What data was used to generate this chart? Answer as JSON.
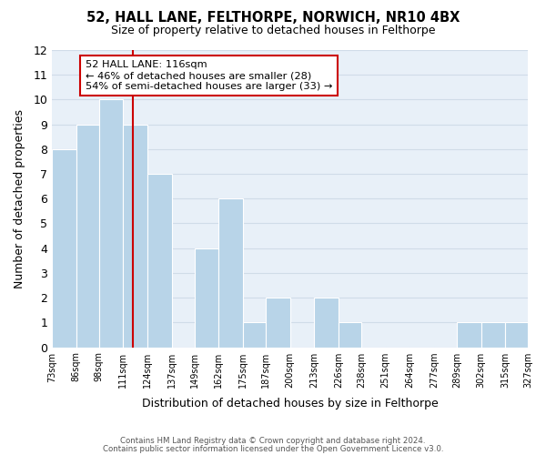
{
  "title_line1": "52, HALL LANE, FELTHORPE, NORWICH, NR10 4BX",
  "title_line2": "Size of property relative to detached houses in Felthorpe",
  "xlabel": "Distribution of detached houses by size in Felthorpe",
  "ylabel": "Number of detached properties",
  "bar_edges": [
    73,
    86,
    98,
    111,
    124,
    137,
    149,
    162,
    175,
    187,
    200,
    213,
    226,
    238,
    251,
    264,
    277,
    289,
    302,
    315,
    327
  ],
  "bar_heights": [
    8,
    9,
    10,
    9,
    7,
    0,
    4,
    6,
    1,
    2,
    0,
    2,
    1,
    0,
    0,
    0,
    0,
    1,
    1,
    1
  ],
  "bar_color": "#b8d4e8",
  "bar_edge_color": "#ffffff",
  "ref_line_x": 116,
  "ref_line_color": "#cc0000",
  "ylim": [
    0,
    12
  ],
  "yticks": [
    0,
    1,
    2,
    3,
    4,
    5,
    6,
    7,
    8,
    9,
    10,
    11,
    12
  ],
  "annotation_title": "52 HALL LANE: 116sqm",
  "annotation_line1": "← 46% of detached houses are smaller (28)",
  "annotation_line2": "54% of semi-detached houses are larger (33) →",
  "annotation_box_color": "#ffffff",
  "annotation_box_edge": "#cc0000",
  "grid_color": "#d0dce8",
  "background_color": "#e8f0f8",
  "footer_line1": "Contains HM Land Registry data © Crown copyright and database right 2024.",
  "footer_line2": "Contains public sector information licensed under the Open Government Licence v3.0.",
  "tick_labels": [
    "73sqm",
    "86sqm",
    "98sqm",
    "111sqm",
    "124sqm",
    "137sqm",
    "149sqm",
    "162sqm",
    "175sqm",
    "187sqm",
    "200sqm",
    "213sqm",
    "226sqm",
    "238sqm",
    "251sqm",
    "264sqm",
    "277sqm",
    "289sqm",
    "302sqm",
    "315sqm",
    "327sqm"
  ]
}
